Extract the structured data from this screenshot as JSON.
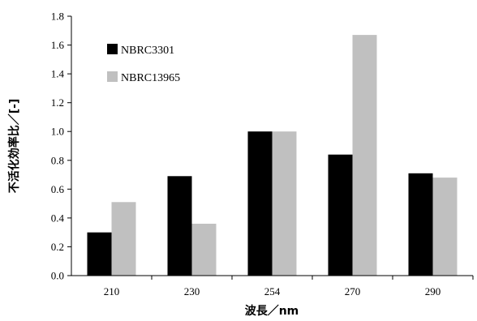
{
  "chart_data": {
    "type": "bar",
    "categories": [
      "210",
      "230",
      "254",
      "270",
      "290"
    ],
    "series": [
      {
        "name": "NBRC3301",
        "color": "#000000",
        "values": [
          0.3,
          0.69,
          1.0,
          0.84,
          0.71
        ]
      },
      {
        "name": "NBRC13965",
        "color": "#c0c0c0",
        "values": [
          0.51,
          0.36,
          1.0,
          1.67,
          0.68
        ]
      }
    ],
    "xlabel": "波長／nm",
    "ylabel": "不活化効率比／[-]",
    "ylim": [
      0,
      1.8
    ],
    "yticks": [
      "0.0",
      "0.2",
      "0.4",
      "0.6",
      "0.8",
      "1.0",
      "1.2",
      "1.4",
      "1.6",
      "1.8"
    ],
    "grid": false,
    "legend_position": "top-left"
  }
}
